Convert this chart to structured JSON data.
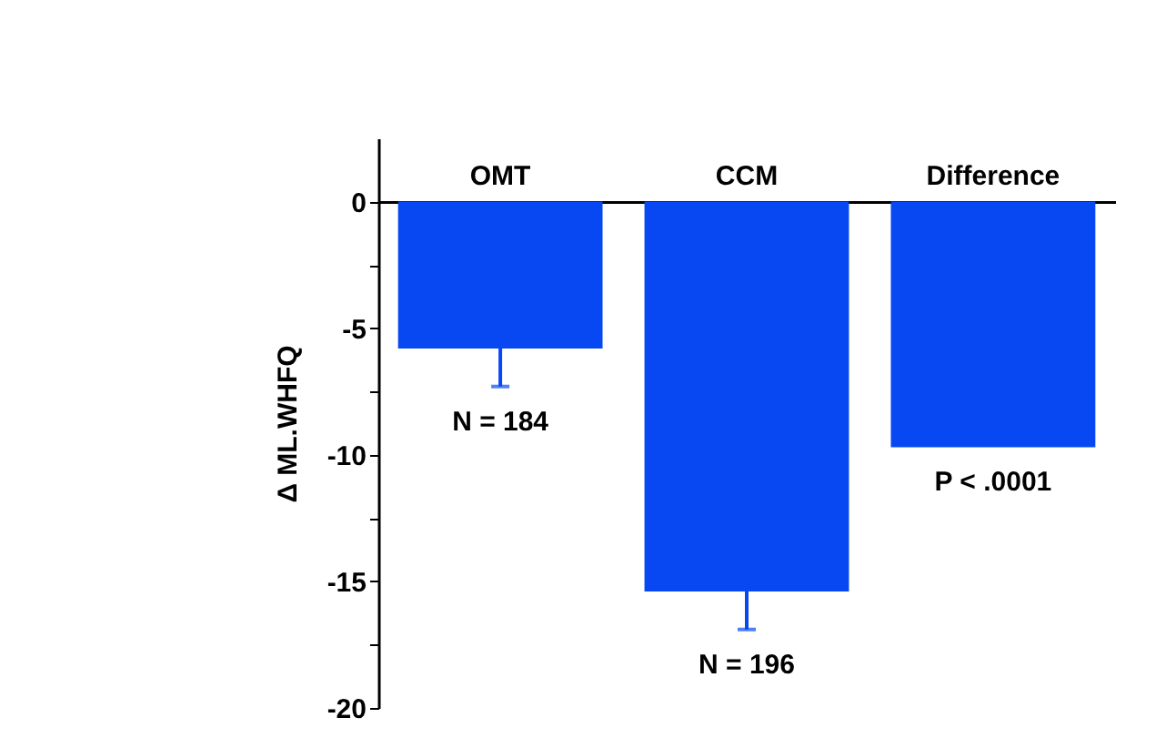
{
  "chart_data": {
    "type": "bar",
    "ylabel": "Δ ML.WHFQ",
    "categories": [
      "OMT",
      "CCM",
      "Difference"
    ],
    "values": [
      -5.8,
      -15.4,
      -9.7
    ],
    "errors": [
      [
        -7.3,
        -5.8
      ],
      [
        -16.9,
        -15.4
      ],
      null
    ],
    "color": "#0748f2",
    "ylim": [
      -20,
      2.5
    ],
    "yticks": [
      0,
      {
        "value": -2.5,
        "label": null
      },
      -5,
      {
        "value": -7.5,
        "label": null
      },
      -10,
      {
        "value": -12.5,
        "label": null
      },
      -15,
      {
        "value": -17.5,
        "label": null
      },
      -20
    ],
    "annotations": [
      "N = 184",
      "N = 196",
      "P < .0001"
    ],
    "grid": false
  }
}
